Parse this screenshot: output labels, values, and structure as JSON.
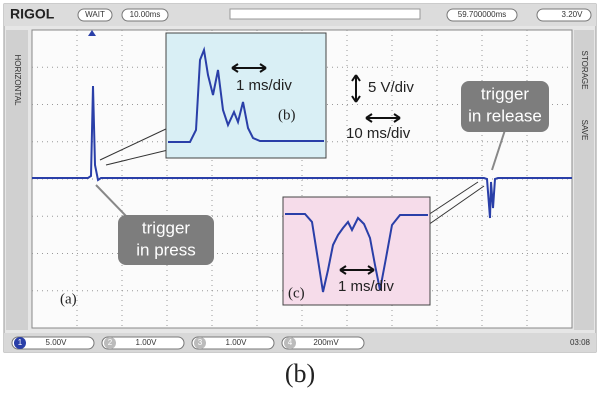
{
  "header": {
    "brand": "RIGOL",
    "status": "WAIT",
    "timebase": "10.00ms",
    "trigger_offset": "59.700000ms",
    "trigger_level": "3.20V"
  },
  "side_left": "HORIZONTAL",
  "side_right": [
    "STORAGE",
    "SAVE"
  ],
  "annotations": {
    "scale_v": "5 V/div",
    "scale_t": "10 ms/div",
    "inset_b_label": "(b)",
    "inset_b_scale": "1 ms/div",
    "inset_c_label": "(c)",
    "inset_c_scale": "1 ms/div",
    "panel_label": "(a)",
    "callout_press": [
      "trigger",
      "in press"
    ],
    "callout_release": [
      "trigger",
      "in release"
    ]
  },
  "footer": {
    "channels": [
      {
        "id": "1",
        "scale": "5.00V"
      },
      {
        "id": "2",
        "scale": "1.00V"
      },
      {
        "id": "3",
        "scale": "1.00V"
      },
      {
        "id": "4",
        "scale": "200mV"
      }
    ],
    "time": "03:08"
  },
  "caption": "(b)"
}
